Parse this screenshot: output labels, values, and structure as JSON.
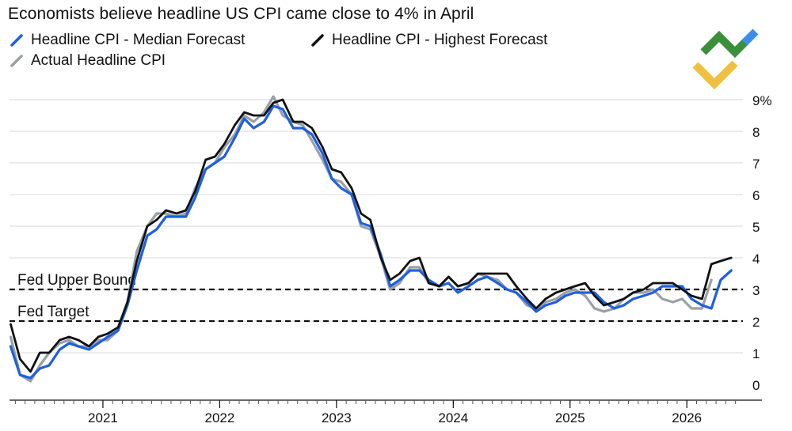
{
  "header": {
    "title": "Economists believe headline US CPI came close to 4% in April"
  },
  "legend": [
    {
      "label": "Headline CPI - Median Forecast",
      "color": "#1f5fe0"
    },
    {
      "label": "Headline CPI - Highest Forecast",
      "color": "#111111"
    },
    {
      "label": "Actual Headline CPI",
      "color": "#9aa0a6"
    }
  ],
  "logo": {
    "name": "brand-logo",
    "colors": [
      "#3a8f3a",
      "#3e8ee8",
      "#f0c040"
    ]
  },
  "chart_data": {
    "type": "line",
    "title": "Economists believe headline US CPI came close to 4% in April",
    "x_unit": "year",
    "x_ticks": [
      2021,
      2022,
      2023,
      2024,
      2025,
      2026
    ],
    "x_tick_labels": [
      "2021",
      "2022",
      "2023",
      "2024",
      "2025",
      "2026"
    ],
    "xlim": [
      2020.2,
      2026.48
    ],
    "y_ticks": [
      0,
      1,
      2,
      3,
      4,
      5,
      6,
      7,
      8,
      9
    ],
    "y_tick_labels": [
      "0",
      "1",
      "2",
      "3",
      "4",
      "5",
      "6",
      "7",
      "8",
      "9%"
    ],
    "ylim": [
      -0.3,
      9.4
    ],
    "grid": true,
    "legend_position": "top-left",
    "reference_lines": [
      {
        "label": "Fed Upper Bound",
        "y": 3.0
      },
      {
        "label": "Fed Target",
        "y": 2.0
      }
    ],
    "series": [
      {
        "name": "Actual Headline CPI",
        "color": "#9aa0a6",
        "x": [
          2020.21,
          2020.29,
          2020.38,
          2020.46,
          2020.54,
          2020.63,
          2020.71,
          2020.79,
          2020.88,
          2020.96,
          2021.04,
          2021.13,
          2021.21,
          2021.29,
          2021.38,
          2021.46,
          2021.54,
          2021.63,
          2021.71,
          2021.79,
          2021.88,
          2021.96,
          2022.04,
          2022.13,
          2022.21,
          2022.29,
          2022.38,
          2022.46,
          2022.54,
          2022.63,
          2022.71,
          2022.79,
          2022.88,
          2022.96,
          2023.04,
          2023.13,
          2023.21,
          2023.29,
          2023.38,
          2023.46,
          2023.54,
          2023.63,
          2023.71,
          2023.79,
          2023.88,
          2023.96,
          2024.04,
          2024.13,
          2024.21,
          2024.29,
          2024.38,
          2024.46,
          2024.54,
          2024.63,
          2024.71,
          2024.79,
          2024.88,
          2024.96,
          2025.04,
          2025.13,
          2025.21,
          2025.29,
          2025.38,
          2025.46,
          2025.54,
          2025.63,
          2025.71,
          2025.79,
          2025.88,
          2025.96,
          2026.04,
          2026.13,
          2026.21
        ],
        "values": [
          1.5,
          0.3,
          0.1,
          0.6,
          1.0,
          1.3,
          1.4,
          1.2,
          1.2,
          1.4,
          1.4,
          1.7,
          2.6,
          4.2,
          5.0,
          5.4,
          5.4,
          5.3,
          5.4,
          6.2,
          6.8,
          7.0,
          7.5,
          7.9,
          8.5,
          8.3,
          8.6,
          9.1,
          8.5,
          8.3,
          8.2,
          7.7,
          7.1,
          6.5,
          6.4,
          6.0,
          5.0,
          4.9,
          4.0,
          3.0,
          3.2,
          3.7,
          3.7,
          3.2,
          3.1,
          3.4,
          3.1,
          3.2,
          3.5,
          3.4,
          3.3,
          3.0,
          2.9,
          2.5,
          2.4,
          2.6,
          2.7,
          2.9,
          3.0,
          2.8,
          2.4,
          2.3,
          2.4,
          2.7,
          2.9,
          2.9,
          3.0,
          2.7,
          2.6,
          2.7,
          2.4,
          2.4,
          3.3
        ]
      },
      {
        "name": "Headline CPI - Median Forecast",
        "color": "#1f5fe0",
        "x": [
          2020.21,
          2020.29,
          2020.38,
          2020.46,
          2020.54,
          2020.63,
          2020.71,
          2020.79,
          2020.88,
          2020.96,
          2021.04,
          2021.13,
          2021.21,
          2021.29,
          2021.38,
          2021.46,
          2021.54,
          2021.63,
          2021.71,
          2021.79,
          2021.88,
          2021.96,
          2022.04,
          2022.13,
          2022.21,
          2022.29,
          2022.38,
          2022.46,
          2022.54,
          2022.63,
          2022.71,
          2022.79,
          2022.88,
          2022.96,
          2023.04,
          2023.13,
          2023.21,
          2023.29,
          2023.38,
          2023.46,
          2023.54,
          2023.63,
          2023.71,
          2023.79,
          2023.88,
          2023.96,
          2024.04,
          2024.13,
          2024.21,
          2024.29,
          2024.38,
          2024.46,
          2024.54,
          2024.63,
          2024.71,
          2024.79,
          2024.88,
          2024.96,
          2025.04,
          2025.13,
          2025.21,
          2025.29,
          2025.38,
          2025.46,
          2025.54,
          2025.63,
          2025.71,
          2025.79,
          2025.88,
          2025.96,
          2026.04,
          2026.13,
          2026.21,
          2026.29,
          2026.38
        ],
        "values": [
          1.2,
          0.3,
          0.2,
          0.5,
          0.6,
          1.1,
          1.3,
          1.2,
          1.1,
          1.3,
          1.5,
          1.7,
          2.5,
          3.6,
          4.7,
          4.9,
          5.3,
          5.3,
          5.3,
          5.9,
          6.8,
          7.0,
          7.2,
          7.8,
          8.4,
          8.1,
          8.3,
          8.8,
          8.7,
          8.1,
          8.1,
          7.9,
          7.3,
          6.5,
          6.2,
          6.0,
          5.1,
          5.0,
          4.1,
          3.1,
          3.3,
          3.6,
          3.6,
          3.3,
          3.1,
          3.2,
          2.9,
          3.1,
          3.3,
          3.4,
          3.2,
          3.0,
          2.9,
          2.6,
          2.3,
          2.5,
          2.6,
          2.8,
          2.9,
          2.9,
          2.9,
          2.6,
          2.4,
          2.5,
          2.7,
          2.8,
          2.9,
          3.1,
          3.1,
          3.1,
          2.7,
          2.5,
          2.4,
          3.3,
          3.6
        ]
      },
      {
        "name": "Headline CPI - Highest Forecast",
        "color": "#111111",
        "x": [
          2020.21,
          2020.29,
          2020.38,
          2020.46,
          2020.54,
          2020.63,
          2020.71,
          2020.79,
          2020.88,
          2020.96,
          2021.04,
          2021.13,
          2021.21,
          2021.29,
          2021.38,
          2021.46,
          2021.54,
          2021.63,
          2021.71,
          2021.79,
          2021.88,
          2021.96,
          2022.04,
          2022.13,
          2022.21,
          2022.29,
          2022.38,
          2022.46,
          2022.54,
          2022.63,
          2022.71,
          2022.79,
          2022.88,
          2022.96,
          2023.04,
          2023.13,
          2023.21,
          2023.29,
          2023.38,
          2023.46,
          2023.54,
          2023.63,
          2023.71,
          2023.79,
          2023.88,
          2023.96,
          2024.04,
          2024.13,
          2024.21,
          2024.29,
          2024.38,
          2024.46,
          2024.54,
          2024.63,
          2024.71,
          2024.79,
          2024.88,
          2024.96,
          2025.04,
          2025.13,
          2025.21,
          2025.29,
          2025.38,
          2025.46,
          2025.54,
          2025.63,
          2025.71,
          2025.79,
          2025.88,
          2025.96,
          2026.04,
          2026.13,
          2026.21,
          2026.29,
          2026.38
        ],
        "values": [
          1.9,
          0.8,
          0.4,
          1.0,
          1.0,
          1.4,
          1.5,
          1.4,
          1.2,
          1.5,
          1.6,
          1.8,
          2.6,
          3.9,
          5.0,
          5.2,
          5.5,
          5.4,
          5.5,
          6.1,
          7.1,
          7.2,
          7.6,
          8.2,
          8.6,
          8.5,
          8.5,
          8.9,
          9.0,
          8.3,
          8.3,
          8.1,
          7.5,
          6.8,
          6.7,
          6.2,
          5.4,
          5.2,
          4.0,
          3.3,
          3.5,
          3.9,
          4.0,
          3.2,
          3.1,
          3.4,
          3.1,
          3.2,
          3.5,
          3.5,
          3.5,
          3.5,
          3.1,
          2.7,
          2.4,
          2.7,
          2.9,
          3.0,
          3.1,
          3.2,
          2.8,
          2.5,
          2.6,
          2.7,
          2.9,
          3.0,
          3.2,
          3.2,
          3.2,
          3.0,
          2.8,
          2.7,
          3.8,
          3.9,
          4.0
        ]
      }
    ]
  }
}
